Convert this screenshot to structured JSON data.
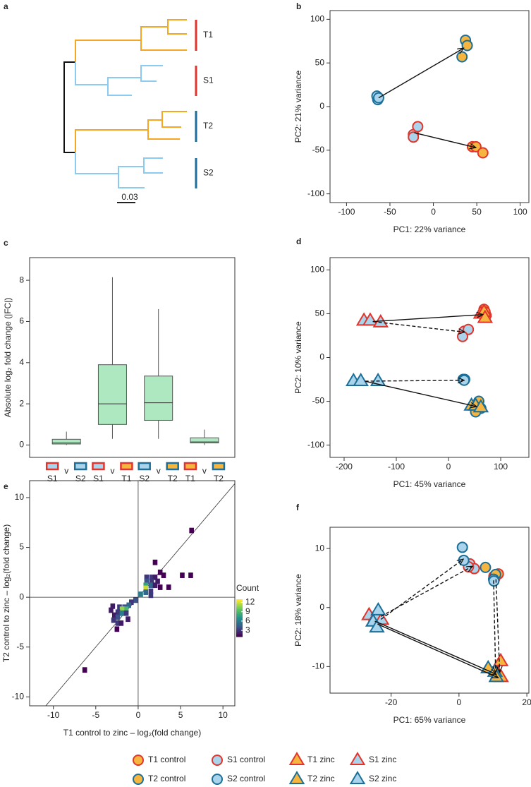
{
  "chart_data": [
    {
      "type": "dendrogram",
      "panel_label": "a",
      "groups": [
        {
          "name": "T1",
          "color": "#e3342b"
        },
        {
          "name": "S1",
          "color": "#e3342b"
        },
        {
          "name": "T2",
          "color": "#1b6f98"
        },
        {
          "name": "S2",
          "color": "#1b6f98"
        }
      ],
      "scale_label": "0.03"
    },
    {
      "type": "scatter",
      "panel_label": "b",
      "xlabel": "PC1: 22% variance",
      "ylabel": "PC2: 21% variance",
      "xlim": [
        -119,
        110
      ],
      "ylim": [
        -110,
        110
      ],
      "xticks": [
        -100,
        -50,
        0,
        50,
        100
      ],
      "yticks": [
        -100,
        -50,
        0,
        50,
        100
      ],
      "series": [
        {
          "fill": "#f6b53f",
          "edge": "#e3342b",
          "marker": "circle",
          "x": [
            45,
            49,
            57
          ],
          "values": [
            -46,
            -46,
            -53
          ]
        },
        {
          "fill": "#a9d4ec",
          "edge": "#e3342b",
          "marker": "circle",
          "x": [
            -23,
            -23,
            -18
          ],
          "values": [
            -32,
            -35,
            -23
          ]
        },
        {
          "fill": "#f6b53f",
          "edge": "#1b6f98",
          "marker": "circle",
          "x": [
            37,
            39,
            33
          ],
          "values": [
            76,
            70,
            57
          ]
        },
        {
          "fill": "#a9d4ec",
          "edge": "#1b6f98",
          "marker": "circle",
          "x": [
            -64,
            -65,
            -63
          ],
          "values": [
            8,
            12,
            10
          ]
        }
      ],
      "arrows": [
        {
          "x": [
            -63,
            35
          ],
          "y": [
            10,
            67
          ],
          "dash": false
        },
        {
          "x": [
            -22,
            49
          ],
          "y": [
            -30,
            -47
          ],
          "dash": false
        }
      ]
    },
    {
      "type": "box",
      "panel_label": "c",
      "ylabel": "Absolute log₂ fold change (|FC|)",
      "ylim": [
        -0.6,
        9.1
      ],
      "yticks": [
        0,
        2,
        4,
        6,
        8
      ],
      "color": "#aee8c0",
      "categories": [
        {
          "left": "S1",
          "sep": "v",
          "right": "S2",
          "left_fill": "#a9d4ec",
          "left_edge": "#e3342b",
          "right_fill": "#a9d4ec",
          "right_edge": "#1b6f98"
        },
        {
          "left": "S1",
          "sep": "v",
          "right": "T1",
          "left_fill": "#a9d4ec",
          "left_edge": "#e3342b",
          "right_fill": "#f6b53f",
          "right_edge": "#e3342b"
        },
        {
          "left": "S2",
          "sep": "v",
          "right": "T2",
          "left_fill": "#a9d4ec",
          "left_edge": "#1b6f98",
          "right_fill": "#f6b53f",
          "right_edge": "#1b6f98"
        },
        {
          "left": "T1",
          "sep": "v",
          "right": "T2",
          "left_fill": "#f6b53f",
          "left_edge": "#e3342b",
          "right_fill": "#f6b53f",
          "right_edge": "#1b6f98"
        }
      ],
      "stats": [
        {
          "min": 0,
          "q1": 0.05,
          "median": 0.1,
          "q3": 0.28,
          "max": 0.65
        },
        {
          "min": 0.3,
          "q1": 1.0,
          "median": 2.0,
          "q3": 3.9,
          "max": 8.15
        },
        {
          "min": 0.3,
          "q1": 1.2,
          "median": 2.05,
          "q3": 3.35,
          "max": 6.6
        },
        {
          "min": 0,
          "q1": 0.1,
          "median": 0.15,
          "q3": 0.35,
          "max": 0.75
        }
      ]
    },
    {
      "type": "scatter",
      "panel_label": "d",
      "xlabel": "PC1: 45% variance",
      "ylabel": "PC2: 10% variance",
      "xlim": [
        -227,
        154
      ],
      "ylim": [
        -114,
        114
      ],
      "xticks": [
        -200,
        -100,
        0,
        100
      ],
      "yticks": [
        -100,
        -50,
        0,
        50,
        100
      ],
      "series": [
        {
          "fill": "#f6b53f",
          "edge": "#e3342b",
          "marker": "circle",
          "x": [
            68,
            72,
            70
          ],
          "values": [
            55,
            48,
            52
          ]
        },
        {
          "fill": "#a9d4ec",
          "edge": "#e3342b",
          "marker": "circle",
          "x": [
            30,
            38,
            27
          ],
          "values": [
            30,
            32,
            24
          ]
        },
        {
          "fill": "#f6b53f",
          "edge": "#e3342b",
          "marker": "triangle",
          "x": [
            62,
            68,
            70
          ],
          "values": [
            50,
            52,
            45
          ]
        },
        {
          "fill": "#a9d4ec",
          "edge": "#e3342b",
          "marker": "triangle",
          "x": [
            -162,
            -150,
            -130
          ],
          "values": [
            42,
            42,
            40
          ]
        },
        {
          "fill": "#f6b53f",
          "edge": "#1b6f98",
          "marker": "circle",
          "x": [
            58,
            62,
            52
          ],
          "values": [
            -50,
            -58,
            -62
          ]
        },
        {
          "fill": "#a9d4ec",
          "edge": "#1b6f98",
          "marker": "circle",
          "x": [
            28,
            31,
            30
          ],
          "values": [
            -25,
            -25,
            -26
          ]
        },
        {
          "fill": "#f6b53f",
          "edge": "#1b6f98",
          "marker": "triangle",
          "x": [
            44,
            52,
            62
          ],
          "values": [
            -55,
            -55,
            -57
          ]
        },
        {
          "fill": "#a9d4ec",
          "edge": "#1b6f98",
          "marker": "triangle",
          "x": [
            -182,
            -168,
            -135
          ],
          "values": [
            -27,
            -27,
            -27
          ]
        }
      ],
      "arrows": [
        {
          "x": [
            -145,
            66
          ],
          "y": [
            41,
            49
          ],
          "dash": false
        },
        {
          "x": [
            -145,
            31
          ],
          "y": [
            41,
            29
          ],
          "dash": true
        },
        {
          "x": [
            -160,
            54
          ],
          "y": [
            -27,
            -56
          ],
          "dash": false
        },
        {
          "x": [
            -160,
            30
          ],
          "y": [
            -27,
            -26
          ],
          "dash": true
        }
      ]
    },
    {
      "type": "hist2d",
      "panel_label": "e",
      "xlabel": "T1 control to zinc – log₂(fold change)",
      "ylabel": "T2 control to zinc – log₂(fold change)",
      "xlim": [
        -12.8,
        11.4
      ],
      "ylim": [
        -10.9,
        11.7
      ],
      "xticks": [
        -10,
        -5,
        0,
        5,
        10
      ],
      "yticks": [
        -10,
        -5,
        0,
        5,
        10
      ],
      "bin_width": 0.55,
      "colormap": "viridis",
      "clim": [
        1,
        13
      ],
      "colorbar_label": "Count",
      "colorbar_ticks": [
        3,
        6,
        9,
        12
      ],
      "identity_line": true,
      "zero_lines": true,
      "x": [
        6.3,
        -6.3,
        2,
        2.6,
        3,
        5.2,
        6.2,
        3.6,
        2.6,
        1,
        1.6,
        2,
        1,
        1.6,
        0.9,
        1.5,
        2,
        0.9,
        0.9,
        1.5,
        0.3,
        -0.3,
        -0.8,
        -1.1,
        -1.6,
        -2.2,
        -1.4,
        -1.9,
        -2.4,
        -2.8,
        -1.9,
        -1.4,
        -2.4,
        -2.9,
        -2.4,
        -2.0,
        -2.5,
        -3.2,
        -3.0,
        -1.2,
        1.5,
        2.3
      ],
      "y": [
        6.7,
        -7.3,
        3.5,
        2.5,
        2.2,
        2.2,
        2.2,
        1,
        1,
        2,
        2,
        2,
        1.6,
        1.6,
        1.2,
        1.2,
        1.2,
        0.9,
        0.5,
        0.6,
        0.3,
        -0.3,
        -0.5,
        -0.8,
        -1,
        -1,
        -1.2,
        -1.2,
        -1.5,
        -1.8,
        -1.6,
        -1.6,
        -2.0,
        -2.3,
        -2.6,
        -2.6,
        -3.2,
        -1.3,
        -0.9,
        -2.2,
        0.2,
        1.6
      ],
      "counts": [
        1,
        1,
        1,
        1,
        1,
        1,
        1,
        1,
        1,
        3,
        3,
        2,
        4,
        3,
        8,
        5,
        2,
        12,
        5,
        3,
        6,
        4,
        3,
        5,
        4,
        3,
        9,
        11,
        3,
        2,
        6,
        3,
        4,
        3,
        3,
        2,
        1,
        2,
        2,
        2,
        3,
        2
      ]
    },
    {
      "type": "scatter",
      "panel_label": "f",
      "xlabel": "PC1: 65% variance",
      "ylabel": "PC2: 18% variance",
      "xlim": [
        -38,
        20.6
      ],
      "ylim": [
        -14.5,
        13.6
      ],
      "xticks": [
        -20,
        0,
        20
      ],
      "yticks": [
        -10,
        0,
        10
      ],
      "series": [
        {
          "fill": "#f6b53f",
          "edge": "#e3342b",
          "marker": "circle",
          "x": [
            11.6,
            10.3,
            10.5
          ],
          "values": [
            5.7,
            5.3,
            4.9
          ]
        },
        {
          "fill": "#a9d4ec",
          "edge": "#e3342b",
          "marker": "circle",
          "x": [
            3.2,
            4.5,
            2.8
          ],
          "values": [
            7.4,
            6.6,
            6.9
          ]
        },
        {
          "fill": "#f6b53f",
          "edge": "#1b6f98",
          "marker": "circle",
          "x": [
            7.8,
            10.8,
            10.2
          ],
          "values": [
            6.8,
            5.6,
            4.8
          ]
        },
        {
          "fill": "#a9d4ec",
          "edge": "#1b6f98",
          "marker": "circle",
          "x": [
            1,
            1.4,
            10.3
          ],
          "values": [
            10.2,
            8.0,
            4.5
          ]
        },
        {
          "fill": "#f6b53f",
          "edge": "#e3342b",
          "marker": "triangle",
          "x": [
            12.3,
            11.5,
            12.4
          ],
          "values": [
            -9.1,
            -11.2,
            -11.8
          ]
        },
        {
          "fill": "#a9d4ec",
          "edge": "#e3342b",
          "marker": "triangle",
          "x": [
            -26.5,
            -24.5,
            -22.8
          ],
          "values": [
            -1.3,
            -1.5,
            -2.1
          ]
        },
        {
          "fill": "#f6b53f",
          "edge": "#1b6f98",
          "marker": "triangle",
          "x": [
            8.6,
            10.6,
            11.0
          ],
          "values": [
            -10.3,
            -10.9,
            -11.8
          ]
        },
        {
          "fill": "#a9d4ec",
          "edge": "#1b6f98",
          "marker": "triangle",
          "x": [
            -23.8,
            -25.3,
            -24.2
          ],
          "values": [
            -0.5,
            -2.4,
            -3.4
          ]
        }
      ],
      "arrows": [
        {
          "x": [
            -23,
            1.3
          ],
          "y": [
            -2,
            8.2
          ],
          "dash": true
        },
        {
          "x": [
            -23,
            4
          ],
          "y": [
            -1.5,
            7
          ],
          "dash": true
        },
        {
          "x": [
            10.2,
            10.8
          ],
          "y": [
            4.6,
            -11
          ],
          "dash": true
        },
        {
          "x": [
            10.9,
            12
          ],
          "y": [
            4.8,
            -11
          ],
          "dash": true
        },
        {
          "x": [
            -24.8,
            11
          ],
          "y": [
            -2.3,
            -11.3
          ],
          "dash": false
        },
        {
          "x": [
            -24,
            11.6
          ],
          "y": [
            -2.8,
            -11.9
          ],
          "dash": false
        }
      ]
    },
    {
      "type": "legend",
      "entries": [
        {
          "name": "T1 control",
          "fill": "#f6b53f",
          "edge": "#e3342b",
          "marker": "circle"
        },
        {
          "name": "S1 control",
          "fill": "#a9d4ec",
          "edge": "#e3342b",
          "marker": "circle"
        },
        {
          "name": "T1 zinc",
          "fill": "#f6b53f",
          "edge": "#e3342b",
          "marker": "triangle"
        },
        {
          "name": "S1 zinc",
          "fill": "#a9d4ec",
          "edge": "#e3342b",
          "marker": "triangle"
        },
        {
          "name": "T2 control",
          "fill": "#f6b53f",
          "edge": "#1b6f98",
          "marker": "circle"
        },
        {
          "name": "S2 control",
          "fill": "#a9d4ec",
          "edge": "#1b6f98",
          "marker": "circle"
        },
        {
          "name": "T2 zinc",
          "fill": "#f6b53f",
          "edge": "#1b6f98",
          "marker": "triangle"
        },
        {
          "name": "S2 zinc",
          "fill": "#a9d4ec",
          "edge": "#1b6f98",
          "marker": "triangle"
        }
      ]
    }
  ]
}
